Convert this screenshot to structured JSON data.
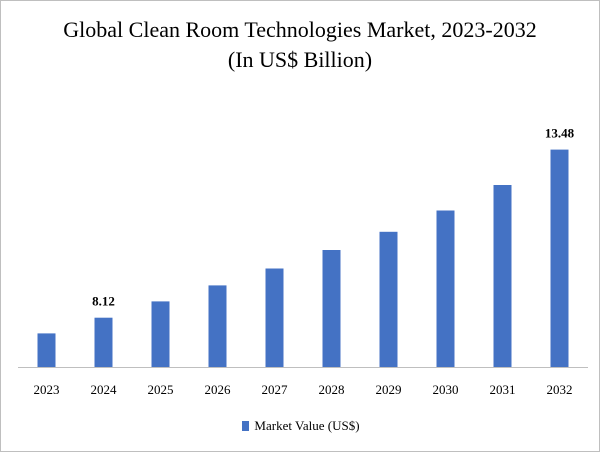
{
  "colors": {
    "bar": "#4472C4",
    "axis": "#bfbfbf"
  },
  "chart_data": {
    "type": "bar",
    "title": "Global Clean Room Technologies Market, 2023-2032 (In US$ Billion)",
    "xlabel": "",
    "ylabel": "",
    "categories": [
      "2023",
      "2024",
      "2025",
      "2026",
      "2027",
      "2028",
      "2029",
      "2030",
      "2031",
      "2032"
    ],
    "series": [
      {
        "name": "Market Value (US$)",
        "values": [
          7.62,
          8.12,
          8.64,
          9.15,
          9.69,
          10.28,
          10.86,
          11.54,
          12.35,
          13.48
        ]
      }
    ],
    "data_labels": [
      {
        "category": "2024",
        "text": "8.12"
      },
      {
        "category": "2032",
        "text": "13.48"
      }
    ],
    "ylim": [
      6.55,
      14.2
    ],
    "grid": false,
    "legend": "bottom"
  }
}
